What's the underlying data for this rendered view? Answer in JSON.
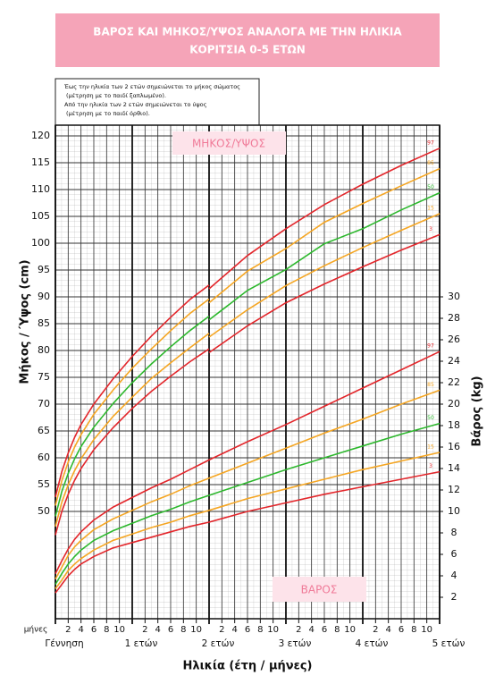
{
  "chart_data": [
    {
      "type": "line",
      "title": "ΒΑΡΟΣ ΚΑΙ ΜΗΚΟΣ/ΥΨΟΣ ΑΝΑΛΟΓΑ ΜΕ ΤΗΝ ΗΛΙΚΙΑ",
      "subtitle": "ΚΟΡΙΤΣΙΑ 0-5 ΕΤΩΝ",
      "note": [
        "Έως την ηλικία των 2 ετών σημειώνεται το μήκος σώματος",
        "(μέτρηση με το παιδί ξαπλωμένο).",
        "Από την ηλικία των 2 ετών σημειώνεται το ύψος",
        "(μέτρηση με το παιδί όρθιο)."
      ],
      "label": "ΜΗΚΟΣ/ΥΨΟΣ",
      "ylabel": "Μήκος / Ύψος (cm)",
      "xlabel": "Ηλικία (έτη / μήνες)",
      "x_unit_label": "μήνες",
      "xlim": [
        0,
        60
      ],
      "ylim": [
        30,
        122
      ],
      "grid": true,
      "yaxis": "left",
      "yticks": [
        50,
        55,
        60,
        65,
        70,
        75,
        80,
        85,
        90,
        95,
        100,
        105,
        110,
        115,
        120
      ],
      "xticks": [
        {
          "value": 2,
          "label": "2"
        },
        {
          "value": 4,
          "label": "4"
        },
        {
          "value": 6,
          "label": "6"
        },
        {
          "value": 8,
          "label": "8"
        },
        {
          "value": 10,
          "label": "10"
        },
        {
          "value": 14,
          "label": "2"
        },
        {
          "value": 16,
          "label": "4"
        },
        {
          "value": 18,
          "label": "6"
        },
        {
          "value": 20,
          "label": "8"
        },
        {
          "value": 22,
          "label": "10"
        },
        {
          "value": 26,
          "label": "2"
        },
        {
          "value": 28,
          "label": "4"
        },
        {
          "value": 30,
          "label": "6"
        },
        {
          "value": 32,
          "label": "8"
        },
        {
          "value": 34,
          "label": "10"
        },
        {
          "value": 38,
          "label": "2"
        },
        {
          "value": 40,
          "label": "4"
        },
        {
          "value": 42,
          "label": "6"
        },
        {
          "value": 44,
          "label": "8"
        },
        {
          "value": 46,
          "label": "10"
        },
        {
          "value": 50,
          "label": "2"
        },
        {
          "value": 52,
          "label": "4"
        },
        {
          "value": 54,
          "label": "6"
        },
        {
          "value": 56,
          "label": "8"
        },
        {
          "value": 58,
          "label": "10"
        }
      ],
      "year_ticks": [
        {
          "value": 0,
          "label": "Γέννηση"
        },
        {
          "value": 12,
          "label": "1 ετών"
        },
        {
          "value": 24,
          "label": "2 ετών"
        },
        {
          "value": 36,
          "label": "3 ετών"
        },
        {
          "value": 48,
          "label": "4 ετών"
        },
        {
          "value": 60,
          "label": "5 ετών"
        }
      ],
      "x": [
        0,
        1,
        2,
        3,
        4,
        6,
        9,
        12,
        15,
        18,
        21,
        24,
        null,
        24,
        30,
        36,
        42,
        48,
        54,
        60
      ],
      "series": [
        {
          "name": "97",
          "color": "#e3262b",
          "values": [
            52.7,
            57.4,
            60.9,
            63.8,
            66.2,
            70.0,
            74.7,
            78.9,
            82.7,
            86.2,
            89.5,
            92.2,
            null,
            91.5,
            97.7,
            102.7,
            107.2,
            111.0,
            114.5,
            117.7
          ]
        },
        {
          "name": "85",
          "color": "#f5a623",
          "values": [
            51.1,
            55.7,
            59.2,
            62.0,
            64.3,
            68.1,
            72.6,
            76.7,
            80.3,
            83.7,
            86.9,
            89.6,
            null,
            88.9,
            94.8,
            99.0,
            103.9,
            107.4,
            110.7,
            113.9
          ]
        },
        {
          "name": "50",
          "color": "#2db82d",
          "values": [
            49.1,
            53.7,
            57.1,
            59.8,
            62.1,
            65.7,
            70.1,
            74.0,
            77.5,
            80.7,
            83.7,
            86.4,
            null,
            85.7,
            91.2,
            95.1,
            99.9,
            102.7,
            106.2,
            109.4
          ]
        },
        {
          "name": "15",
          "color": "#f5a623",
          "values": [
            47.2,
            51.7,
            55.0,
            57.6,
            59.8,
            63.4,
            67.7,
            71.3,
            74.8,
            77.7,
            80.5,
            83.2,
            null,
            82.5,
            87.6,
            92.1,
            95.8,
            99.2,
            102.4,
            105.5
          ]
        },
        {
          "name": "3",
          "color": "#e3262b",
          "values": [
            45.6,
            50.0,
            53.2,
            55.8,
            58.0,
            61.5,
            65.6,
            69.2,
            72.4,
            75.2,
            77.9,
            80.3,
            null,
            79.6,
            84.6,
            88.9,
            92.4,
            95.6,
            98.7,
            101.6
          ]
        }
      ]
    },
    {
      "type": "line",
      "label": "ΒΑΡΟΣ",
      "ylabel": "Βάρος (kg)",
      "xlim": [
        0,
        60
      ],
      "ylim": [
        0,
        46
      ],
      "yaxis": "right",
      "yticks": [
        2,
        4,
        6,
        8,
        10,
        12,
        14,
        16,
        18,
        20,
        22,
        24,
        26,
        28,
        30
      ],
      "x": [
        0,
        1,
        2,
        3,
        4,
        6,
        9,
        12,
        15,
        18,
        21,
        24,
        30,
        36,
        42,
        48,
        54,
        60
      ],
      "series": [
        {
          "name": "97",
          "color": "#e3262b",
          "values": [
            4.2,
            5.4,
            6.5,
            7.4,
            8.1,
            9.2,
            10.4,
            11.3,
            12.2,
            13.0,
            13.9,
            14.8,
            16.5,
            18.1,
            19.8,
            21.5,
            23.2,
            24.9
          ]
        },
        {
          "name": "85",
          "color": "#f5a623",
          "values": [
            3.7,
            4.8,
            5.9,
            6.7,
            7.3,
            8.3,
            9.3,
            10.1,
            10.9,
            11.6,
            12.4,
            13.1,
            14.5,
            15.9,
            17.3,
            18.6,
            20.0,
            21.3
          ]
        },
        {
          "name": "50",
          "color": "#2db82d",
          "values": [
            3.2,
            4.2,
            5.1,
            5.8,
            6.4,
            7.3,
            8.2,
            8.9,
            9.6,
            10.2,
            10.9,
            11.5,
            12.7,
            13.9,
            15.0,
            16.1,
            17.2,
            18.2
          ]
        },
        {
          "name": "15",
          "color": "#f5a623",
          "values": [
            2.8,
            3.6,
            4.5,
            5.1,
            5.6,
            6.4,
            7.3,
            7.9,
            8.5,
            9.0,
            9.6,
            10.1,
            11.2,
            12.1,
            13.0,
            13.9,
            14.7,
            15.5
          ]
        },
        {
          "name": "3",
          "color": "#e3262b",
          "values": [
            2.4,
            3.2,
            4.0,
            4.6,
            5.1,
            5.8,
            6.6,
            7.1,
            7.6,
            8.1,
            8.6,
            9.0,
            10.0,
            10.8,
            11.6,
            12.3,
            13.0,
            13.7
          ]
        }
      ]
    }
  ]
}
